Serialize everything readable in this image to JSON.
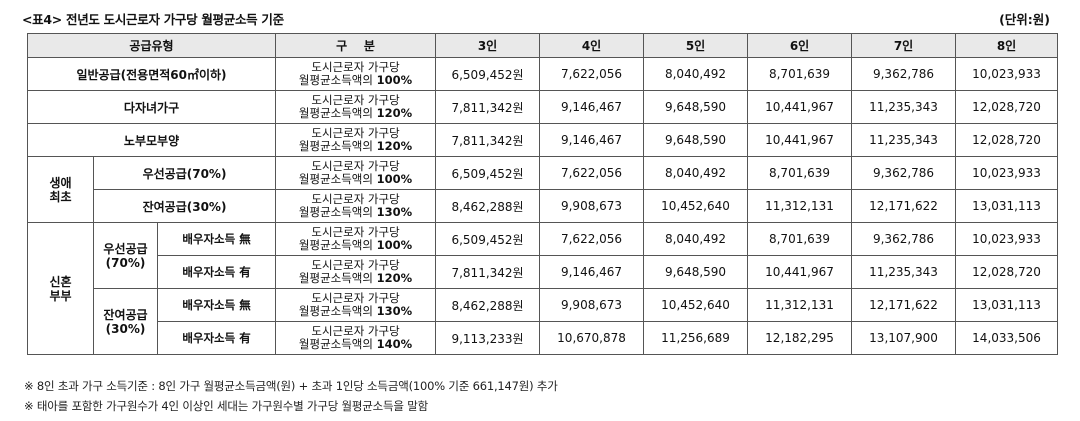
{
  "title": "<표4> 전년도 도시근로자 가구당 월평균소득 기준",
  "unit": "(단위:원)",
  "headers": {
    "supply_type": "공급유형",
    "category": "구    분",
    "cols": [
      "3인",
      "4인",
      "5인",
      "6인",
      "7인",
      "8인"
    ]
  },
  "standard_prefix": "도시근로자 가구당",
  "standard_mid": "월평균소득액의",
  "groups": {
    "first_life": "생애최초",
    "newlywed": "신혼부부",
    "priority": "우선공급(70%)",
    "remainder": "잔여공급(30%)"
  },
  "rows": [
    {
      "label": "일반공급(전용면적60㎡이하)",
      "pct": "100%",
      "values": [
        "6,509,452원",
        "7,622,056",
        "8,040,492",
        "8,701,639",
        "9,362,786",
        "10,023,933"
      ]
    },
    {
      "label": "다자녀가구",
      "pct": "120%",
      "values": [
        "7,811,342원",
        "9,146,467",
        "9,648,590",
        "10,441,967",
        "11,235,343",
        "12,028,720"
      ]
    },
    {
      "label": "노부모부양",
      "pct": "120%",
      "values": [
        "7,811,342원",
        "9,146,467",
        "9,648,590",
        "10,441,967",
        "11,235,343",
        "12,028,720"
      ]
    },
    {
      "label": "우선공급(70%)",
      "pct": "100%",
      "values": [
        "6,509,452원",
        "7,622,056",
        "8,040,492",
        "8,701,639",
        "9,362,786",
        "10,023,933"
      ]
    },
    {
      "label": "잔여공급(30%)",
      "pct": "130%",
      "values": [
        "8,462,288원",
        "9,908,673",
        "10,452,640",
        "11,312,131",
        "12,171,622",
        "13,031,113"
      ]
    },
    {
      "label": "배우자소득 無",
      "pct": "100%",
      "values": [
        "6,509,452원",
        "7,622,056",
        "8,040,492",
        "8,701,639",
        "9,362,786",
        "10,023,933"
      ]
    },
    {
      "label": "배우자소득 有",
      "pct": "120%",
      "values": [
        "7,811,342원",
        "9,146,467",
        "9,648,590",
        "10,441,967",
        "11,235,343",
        "12,028,720"
      ]
    },
    {
      "label": "배우자소득 無",
      "pct": "130%",
      "values": [
        "8,462,288원",
        "9,908,673",
        "10,452,640",
        "11,312,131",
        "12,171,622",
        "13,031,113"
      ]
    },
    {
      "label": "배우자소득 有",
      "pct": "140%",
      "values": [
        "9,113,233원",
        "10,670,878",
        "11,256,689",
        "12,182,295",
        "13,107,900",
        "14,033,506"
      ]
    }
  ],
  "notes": [
    "※ 8인 초과 가구 소득기준 : 8인 가구 월평균소득금액(원) + 초과 1인당 소득금액(100% 기준 661,147원) 추가",
    "※ 태아를 포함한 가구원수가 4인 이상인 세대는 가구원수별 가구당 월평균소득을 말함"
  ]
}
